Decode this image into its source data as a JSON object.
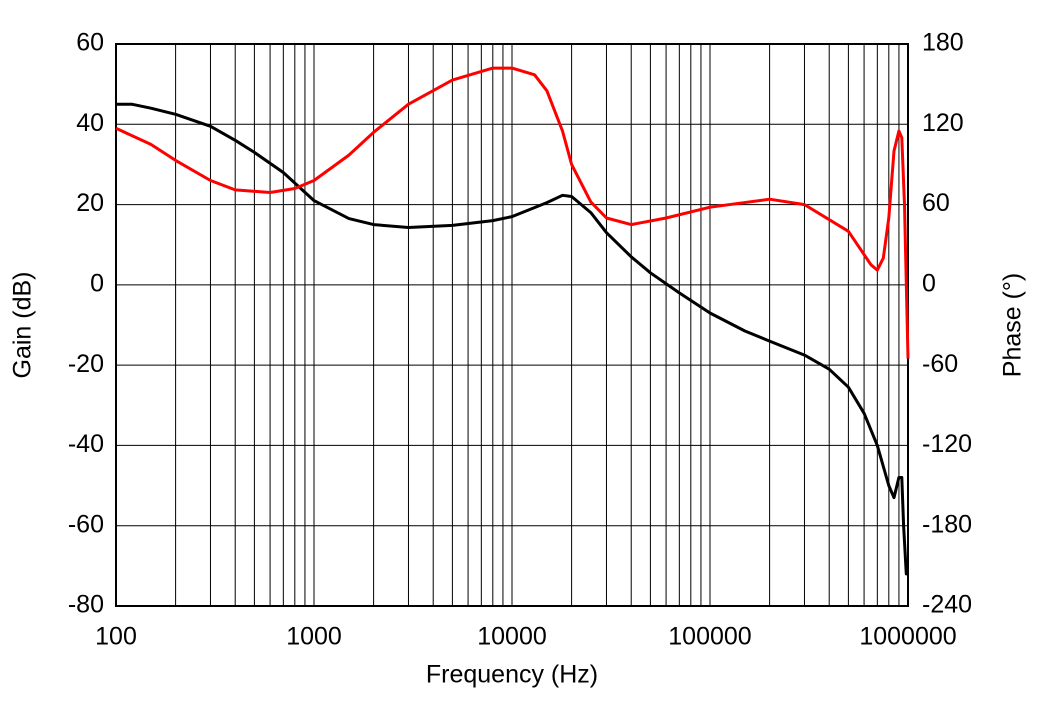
{
  "chart_data": {
    "type": "line",
    "xlabel": "Frequency (Hz)",
    "ylabel": "Gain (dB)",
    "y2label": "Phase (°)",
    "xscale": "log",
    "grid": true,
    "xlim": [
      100,
      1000000
    ],
    "xticks": [
      100,
      1000,
      10000,
      100000,
      1000000
    ],
    "ylim": [
      -80,
      60
    ],
    "yticks": [
      -80,
      -60,
      -40,
      -20,
      0,
      20,
      40,
      60
    ],
    "y2lim": [
      -240,
      180
    ],
    "y2ticks": [
      -240,
      -180,
      -120,
      -60,
      0,
      60,
      120,
      180
    ],
    "series": [
      {
        "name": "Gain",
        "color": "#000000",
        "x": [
          100,
          120,
          150,
          200,
          300,
          400,
          500,
          700,
          1000,
          1500,
          2000,
          3000,
          5000,
          8000,
          10000,
          15000,
          18000,
          20000,
          25000,
          30000,
          40000,
          50000,
          70000,
          100000,
          150000,
          200000,
          300000,
          400000,
          500000,
          600000,
          700000,
          800000,
          850000,
          900000,
          930000,
          950000,
          980000,
          1000000
        ],
        "values": [
          45,
          45,
          44,
          42.5,
          39.5,
          36,
          33,
          28,
          21,
          16.5,
          15,
          14.3,
          14.8,
          16,
          17,
          20.5,
          22.3,
          22,
          18,
          13,
          7,
          3,
          -2,
          -7,
          -11.5,
          -14,
          -17.5,
          -21,
          -25.5,
          -32,
          -40,
          -50,
          -53,
          -48,
          -48,
          -60,
          -72,
          -72
        ]
      },
      {
        "name": "Phase",
        "color": "#ff0000",
        "axis": "y2",
        "x": [
          100,
          150,
          200,
          300,
          400,
          600,
          800,
          1000,
          1500,
          2000,
          3000,
          5000,
          8000,
          10000,
          13000,
          15000,
          18000,
          20000,
          25000,
          30000,
          40000,
          60000,
          100000,
          200000,
          300000,
          500000,
          650000,
          700000,
          750000,
          800000,
          850000,
          900000,
          930000,
          960000,
          1000000
        ],
        "values": [
          117,
          105,
          93,
          78,
          71,
          69,
          72,
          78,
          97,
          114,
          135,
          153,
          162,
          162,
          157,
          145,
          115,
          90,
          62,
          50,
          45,
          50,
          58,
          64,
          60,
          40,
          15,
          11,
          20,
          50,
          100,
          115,
          110,
          60,
          -55
        ]
      }
    ]
  }
}
